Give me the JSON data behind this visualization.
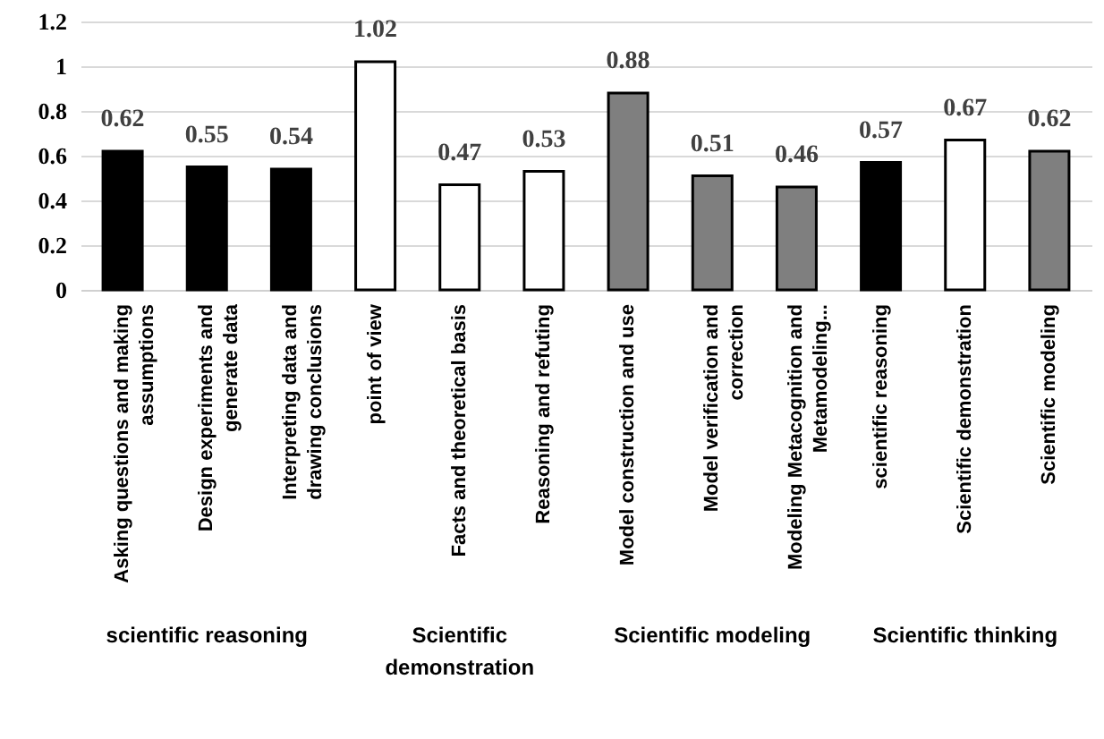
{
  "chart_data": {
    "type": "bar",
    "categories": [
      "Asking questions and making assumptions",
      "Design experiments and generate data",
      "Interpreting data and drawing conclusions",
      "point of view",
      "Facts and theoretical basis",
      "Reasoning and refuting",
      "Model construction and use",
      "Model verification and correction",
      "Modeling Metacognition and Metamodeling...",
      "scientific reasoning",
      "Scientific demonstration",
      "Scientific modeling"
    ],
    "values": [
      0.62,
      0.55,
      0.54,
      1.02,
      0.47,
      0.53,
      0.88,
      0.51,
      0.46,
      0.57,
      0.67,
      0.62
    ],
    "colors": [
      "#000000",
      "#000000",
      "#000000",
      "#ffffff",
      "#ffffff",
      "#ffffff",
      "#7f7f7f",
      "#7f7f7f",
      "#7f7f7f",
      "#000000",
      "#ffffff",
      "#7f7f7f"
    ],
    "annotations": [
      "scientific reasoning",
      "Scientific demonstration",
      "Scientific modeling",
      "Scientific thinking"
    ],
    "ylim": [
      0,
      1.2
    ],
    "yticks": [
      0,
      0.2,
      0.4,
      0.6,
      0.8,
      1,
      1.2
    ],
    "data_labels": true,
    "grid": "y"
  }
}
